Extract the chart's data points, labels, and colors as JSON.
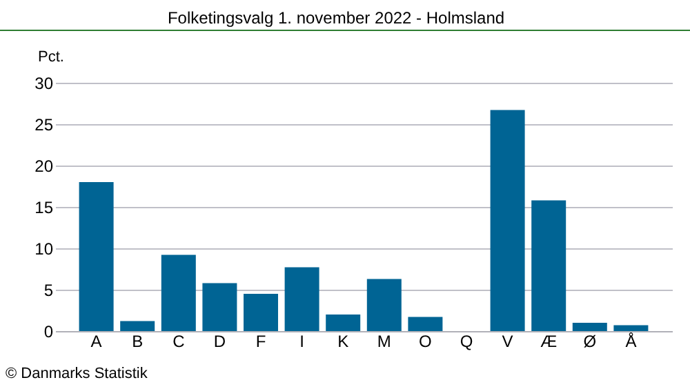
{
  "chart_data": {
    "type": "bar",
    "title": "Folketingsvalg 1. november 2022 - Holmsland",
    "ylabel": "Pct.",
    "categories": [
      "A",
      "B",
      "C",
      "D",
      "F",
      "I",
      "K",
      "M",
      "O",
      "Q",
      "V",
      "Æ",
      "Ø",
      "Å"
    ],
    "values": [
      18.0,
      1.2,
      9.2,
      5.8,
      4.5,
      7.7,
      2.0,
      6.3,
      1.7,
      0,
      26.7,
      15.8,
      1.0,
      0.7
    ],
    "color": "#006494",
    "ylim": [
      0,
      30
    ],
    "yticks": [
      0,
      5,
      10,
      15,
      20,
      25,
      30
    ],
    "grid": "y",
    "annotations": [
      "© Danmarks Statistik"
    ]
  }
}
